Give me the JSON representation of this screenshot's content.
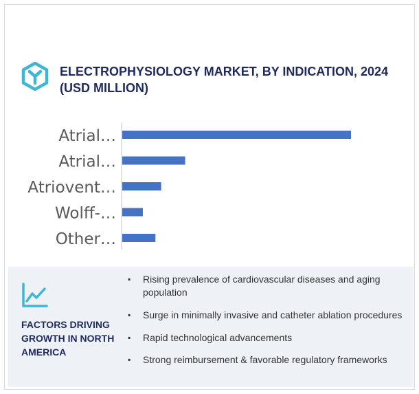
{
  "header": {
    "title": "ELECTROPHYSIOLOGY MARKET, BY INDICATION, 2024 (USD MILLION)",
    "brand_icon": "hexagon-y-logo-icon"
  },
  "chart_data": {
    "type": "bar",
    "orientation": "horizontal",
    "categories": [
      "Atrial…",
      "Atrial…",
      "Atriovent…",
      "Wolff-…",
      "Other…"
    ],
    "values": [
      100,
      27.5,
      17,
      9,
      14.5
    ],
    "xlim": [
      0,
      100
    ],
    "grid": false,
    "bar_color": "#4472c4",
    "axis_color": "#d9d9d9"
  },
  "factors": {
    "icon": "line-chart-growth-icon",
    "title": "FACTORS DRIVING GROWTH IN NORTH AMERICA",
    "items": [
      "Rising prevalence of cardiovascular diseases and aging population",
      "Surge in minimally invasive and catheter ablation procedures",
      "Rapid technological advancements",
      "Strong reimbursement & favorable regulatory frameworks"
    ],
    "bullet": "▪"
  },
  "colors": {
    "title": "#1f2a5c",
    "icon": "#3fb6d3",
    "panel": "#eef2f7"
  }
}
